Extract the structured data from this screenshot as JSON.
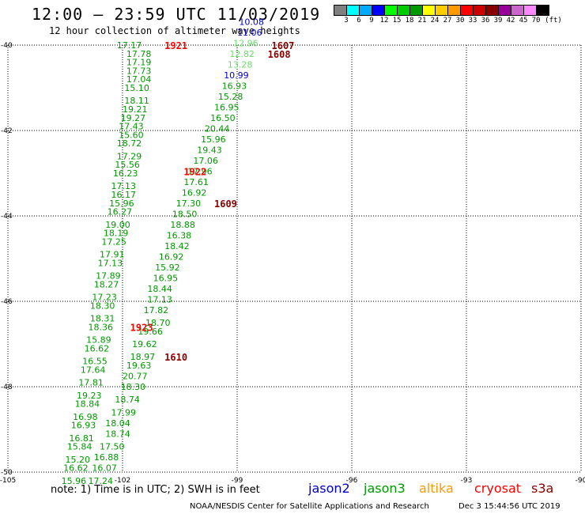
{
  "header": {
    "title": "12:00 — 23:59 UTC 11/03/2019",
    "subtitle": "12 hour collection of altimeter wave heights"
  },
  "colorbar": {
    "colors": [
      "#808080",
      "#00ffff",
      "#00aaff",
      "#0000ff",
      "#00ff00",
      "#00cc00",
      "#009900",
      "#ffff00",
      "#ffcc00",
      "#ff9900",
      "#ff0000",
      "#cc0000",
      "#880000",
      "#990099",
      "#cc66cc",
      "#ff88ff",
      "#000000"
    ],
    "labels": [
      "3",
      "6",
      "9",
      "12",
      "15",
      "18",
      "21",
      "24",
      "27",
      "30",
      "33",
      "36",
      "39",
      "42",
      "45",
      "70",
      "(ft)"
    ]
  },
  "map": {
    "lon_ticks": [
      "-105",
      "-102",
      "-99",
      "-96",
      "-93",
      "-90"
    ],
    "lat_ticks": [
      "-40",
      "-42",
      "-44",
      "-46",
      "-48",
      "-50"
    ],
    "lon_range": [
      -105,
      -90
    ],
    "lat_range": [
      -50,
      -40
    ]
  },
  "track_labels": [
    {
      "text": "1921",
      "lon": -100.9,
      "lat": -40.0,
      "color": "#ff0000"
    },
    {
      "text": "1922",
      "lon": -100.4,
      "lat": -42.95,
      "color": "#ff0000"
    },
    {
      "text": "1923",
      "lon": -101.8,
      "lat": -46.6,
      "color": "#ff0000"
    },
    {
      "text": "1607",
      "lon": -98.1,
      "lat": -40.0,
      "color": "#880000"
    },
    {
      "text": "1608",
      "lon": -98.2,
      "lat": -40.2,
      "color": "#880000"
    },
    {
      "text": "1609",
      "lon": -99.6,
      "lat": -43.7,
      "color": "#880000"
    },
    {
      "text": "1610",
      "lon": -100.9,
      "lat": -47.3,
      "color": "#880000"
    }
  ],
  "readings": [
    {
      "value": "17.17",
      "lon": -102.15,
      "lat": -40.0,
      "color": "#009900"
    },
    {
      "value": "17.78",
      "lon": -101.9,
      "lat": -40.2,
      "color": "#009900"
    },
    {
      "value": "17.19",
      "lon": -101.9,
      "lat": -40.4,
      "color": "#009900"
    },
    {
      "value": "17.73",
      "lon": -101.9,
      "lat": -40.6,
      "color": "#009900"
    },
    {
      "value": "17.04",
      "lon": -101.9,
      "lat": -40.8,
      "color": "#009900"
    },
    {
      "value": "15.10",
      "lon": -101.95,
      "lat": -41.0,
      "color": "#009900"
    },
    {
      "value": "18.11",
      "lon": -101.95,
      "lat": -41.3,
      "color": "#009900"
    },
    {
      "value": "19.21",
      "lon": -102.0,
      "lat": -41.5,
      "color": "#009900"
    },
    {
      "value": "19.27",
      "lon": -102.05,
      "lat": -41.7,
      "color": "#009900"
    },
    {
      "value": "17.43",
      "lon": -102.1,
      "lat": -41.9,
      "color": "#009900"
    },
    {
      "value": "15.60",
      "lon": -102.1,
      "lat": -42.1,
      "color": "#009900"
    },
    {
      "value": "18.72",
      "lon": -102.15,
      "lat": -42.3,
      "color": "#009900"
    },
    {
      "value": "17.29",
      "lon": -102.15,
      "lat": -42.6,
      "color": "#009900"
    },
    {
      "value": "15.56",
      "lon": -102.2,
      "lat": -42.8,
      "color": "#009900"
    },
    {
      "value": "16.23",
      "lon": -102.25,
      "lat": -43.0,
      "color": "#009900"
    },
    {
      "value": "17.13",
      "lon": -102.3,
      "lat": -43.3,
      "color": "#009900"
    },
    {
      "value": "16.17",
      "lon": -102.3,
      "lat": -43.5,
      "color": "#009900"
    },
    {
      "value": "15.96",
      "lon": -102.35,
      "lat": -43.7,
      "color": "#009900"
    },
    {
      "value": "16.27",
      "lon": -102.4,
      "lat": -43.9,
      "color": "#009900"
    },
    {
      "value": "19.00",
      "lon": -102.45,
      "lat": -44.2,
      "color": "#009900"
    },
    {
      "value": "18.19",
      "lon": -102.5,
      "lat": -44.4,
      "color": "#009900"
    },
    {
      "value": "17.25",
      "lon": -102.55,
      "lat": -44.6,
      "color": "#009900"
    },
    {
      "value": "17.91",
      "lon": -102.6,
      "lat": -44.9,
      "color": "#009900"
    },
    {
      "value": "17.13",
      "lon": -102.65,
      "lat": -45.1,
      "color": "#009900"
    },
    {
      "value": "17.89",
      "lon": -102.7,
      "lat": -45.4,
      "color": "#009900"
    },
    {
      "value": "18.27",
      "lon": -102.75,
      "lat": -45.6,
      "color": "#009900"
    },
    {
      "value": "17.23",
      "lon": -102.8,
      "lat": -45.9,
      "color": "#009900"
    },
    {
      "value": "18.30",
      "lon": -102.85,
      "lat": -46.1,
      "color": "#009900"
    },
    {
      "value": "18.31",
      "lon": -102.85,
      "lat": -46.4,
      "color": "#009900"
    },
    {
      "value": "18.36",
      "lon": -102.9,
      "lat": -46.6,
      "color": "#009900"
    },
    {
      "value": "15.89",
      "lon": -102.95,
      "lat": -46.9,
      "color": "#009900"
    },
    {
      "value": "16.62",
      "lon": -103.0,
      "lat": -47.1,
      "color": "#009900"
    },
    {
      "value": "16.55",
      "lon": -103.05,
      "lat": -47.4,
      "color": "#009900"
    },
    {
      "value": "17.64",
      "lon": -103.1,
      "lat": -47.6,
      "color": "#009900"
    },
    {
      "value": "17.81",
      "lon": -103.15,
      "lat": -47.9,
      "color": "#009900"
    },
    {
      "value": "19.23",
      "lon": -103.2,
      "lat": -48.2,
      "color": "#009900"
    },
    {
      "value": "18.84",
      "lon": -103.25,
      "lat": -48.4,
      "color": "#009900"
    },
    {
      "value": "16.98",
      "lon": -103.3,
      "lat": -48.7,
      "color": "#009900"
    },
    {
      "value": "16.93",
      "lon": -103.35,
      "lat": -48.9,
      "color": "#009900"
    },
    {
      "value": "16.81",
      "lon": -103.4,
      "lat": -49.2,
      "color": "#009900"
    },
    {
      "value": "15.84",
      "lon": -103.45,
      "lat": -49.4,
      "color": "#009900"
    },
    {
      "value": "15.20",
      "lon": -103.5,
      "lat": -49.7,
      "color": "#009900"
    },
    {
      "value": "16.62",
      "lon": -103.55,
      "lat": -49.9,
      "color": "#009900"
    },
    {
      "value": "15.96",
      "lon": -103.6,
      "lat": -50.2,
      "color": "#009900"
    },
    {
      "value": "17.24",
      "lon": -102.9,
      "lat": -50.2,
      "color": "#009900"
    },
    {
      "value": "16.07",
      "lon": -102.8,
      "lat": -49.9,
      "color": "#009900"
    },
    {
      "value": "16.88",
      "lon": -102.75,
      "lat": -49.65,
      "color": "#009900"
    },
    {
      "value": "17.50",
      "lon": -102.6,
      "lat": -49.4,
      "color": "#009900"
    },
    {
      "value": "18.74",
      "lon": -102.45,
      "lat": -49.1,
      "color": "#009900"
    },
    {
      "value": "18.04",
      "lon": -102.45,
      "lat": -48.85,
      "color": "#009900"
    },
    {
      "value": "17.99",
      "lon": -102.3,
      "lat": -48.6,
      "color": "#009900"
    },
    {
      "value": "18.74",
      "lon": -102.2,
      "lat": -48.3,
      "color": "#009900"
    },
    {
      "value": "18.30",
      "lon": -102.05,
      "lat": -48.0,
      "color": "#009900"
    },
    {
      "value": "20.77",
      "lon": -102.0,
      "lat": -47.75,
      "color": "#009900"
    },
    {
      "value": "19.63",
      "lon": -101.9,
      "lat": -47.5,
      "color": "#009900"
    },
    {
      "value": "18.97",
      "lon": -101.8,
      "lat": -47.3,
      "color": "#009900"
    },
    {
      "value": "19.62",
      "lon": -101.75,
      "lat": -47.0,
      "color": "#009900"
    },
    {
      "value": "19.66",
      "lon": -101.6,
      "lat": -46.7,
      "color": "#009900"
    },
    {
      "value": "18.70",
      "lon": -101.4,
      "lat": -46.5,
      "color": "#009900"
    },
    {
      "value": "17.82",
      "lon": -101.45,
      "lat": -46.2,
      "color": "#009900"
    },
    {
      "value": "17.13",
      "lon": -101.35,
      "lat": -45.95,
      "color": "#009900"
    },
    {
      "value": "18.44",
      "lon": -101.35,
      "lat": -45.7,
      "color": "#009900"
    },
    {
      "value": "16.95",
      "lon": -101.2,
      "lat": -45.45,
      "color": "#009900"
    },
    {
      "value": "15.92",
      "lon": -101.15,
      "lat": -45.2,
      "color": "#009900"
    },
    {
      "value": "16.92",
      "lon": -101.05,
      "lat": -44.95,
      "color": "#009900"
    },
    {
      "value": "18.42",
      "lon": -100.9,
      "lat": -44.7,
      "color": "#009900"
    },
    {
      "value": "16.38",
      "lon": -100.85,
      "lat": -44.45,
      "color": "#009900"
    },
    {
      "value": "18.88",
      "lon": -100.75,
      "lat": -44.2,
      "color": "#009900"
    },
    {
      "value": "18.50",
      "lon": -100.7,
      "lat": -43.95,
      "color": "#009900"
    },
    {
      "value": "17.30",
      "lon": -100.6,
      "lat": -43.7,
      "color": "#009900"
    },
    {
      "value": "16.92",
      "lon": -100.45,
      "lat": -43.45,
      "color": "#009900"
    },
    {
      "value": "17.61",
      "lon": -100.4,
      "lat": -43.2,
      "color": "#009900"
    },
    {
      "value": "17.96",
      "lon": -100.3,
      "lat": -42.95,
      "color": "#009900"
    },
    {
      "value": "17.06",
      "lon": -100.15,
      "lat": -42.7,
      "color": "#009900"
    },
    {
      "value": "19.43",
      "lon": -100.05,
      "lat": -42.45,
      "color": "#009900"
    },
    {
      "value": "15.96",
      "lon": -99.95,
      "lat": -42.2,
      "color": "#009900"
    },
    {
      "value": "20.44",
      "lon": -99.85,
      "lat": -41.95,
      "color": "#009900"
    },
    {
      "value": "16.50",
      "lon": -99.7,
      "lat": -41.7,
      "color": "#009900"
    },
    {
      "value": "16.95",
      "lon": -99.6,
      "lat": -41.45,
      "color": "#009900"
    },
    {
      "value": "15.28",
      "lon": -99.5,
      "lat": -41.2,
      "color": "#009900"
    },
    {
      "value": "16.93",
      "lon": -99.4,
      "lat": -40.95,
      "color": "#009900"
    },
    {
      "value": "10.99",
      "lon": -99.35,
      "lat": -40.7,
      "color": "#0000cc"
    },
    {
      "value": "13.28",
      "lon": -99.25,
      "lat": -40.45,
      "color": "#66dd66"
    },
    {
      "value": "12.82",
      "lon": -99.2,
      "lat": -40.2,
      "color": "#66dd66"
    },
    {
      "value": "12.96",
      "lon": -99.1,
      "lat": -39.95,
      "color": "#66dd66"
    },
    {
      "value": "11.06",
      "lon": -99.0,
      "lat": -39.7,
      "color": "#0000cc"
    },
    {
      "value": "10.08",
      "lon": -98.95,
      "lat": -39.45,
      "color": "#0000cc"
    }
  ],
  "footer": {
    "note": "note:  1) Time is in UTC; 2) SWH is in feet",
    "satellites": [
      {
        "name": "jason2",
        "color": "#0000cc"
      },
      {
        "name": "jason3",
        "color": "#009900"
      },
      {
        "name": "altika",
        "color": "#ff9900"
      },
      {
        "name": "cryosat",
        "color": "#ff0000"
      },
      {
        "name": "s3a",
        "color": "#880000"
      }
    ],
    "credit": "NOAA/NESDIS Center for Satellite Applications and Research",
    "timestamp": "Dec  3 15:44:56 UTC 2019"
  }
}
